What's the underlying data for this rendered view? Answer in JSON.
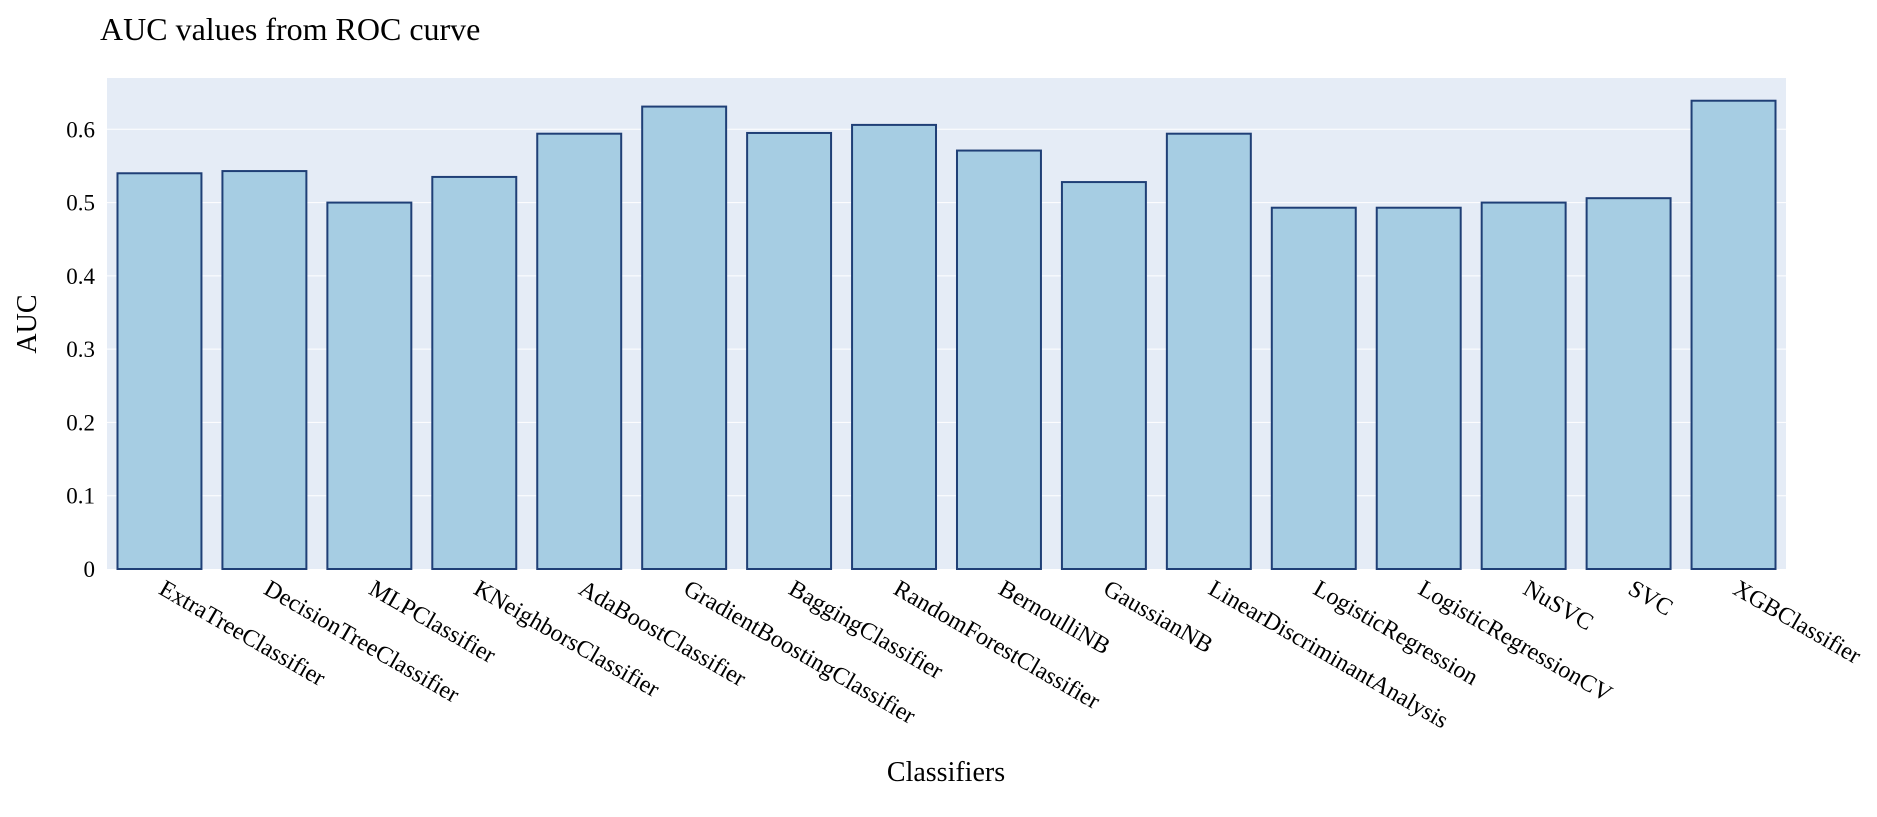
{
  "chart_data": {
    "type": "bar",
    "title": "AUC values from ROC curve",
    "xlabel": "Classifiers",
    "ylabel": "AUC",
    "categories": [
      "ExtraTreeClassifier",
      "DecisionTreeClassifier",
      "MLPClassifier",
      "KNeighborsClassifier",
      "AdaBoostClassifier",
      "GradientBoostingClassifier",
      "BaggingClassifier",
      "RandomForestClassifier",
      "BernoulliNB",
      "GaussianNB",
      "LinearDiscriminantAnalysis",
      "LogisticRegression",
      "LogisticRegressionCV",
      "NuSVC",
      "SVC",
      "XGBClassifier"
    ],
    "values": [
      0.54,
      0.543,
      0.5,
      0.535,
      0.594,
      0.631,
      0.595,
      0.606,
      0.571,
      0.528,
      0.594,
      0.493,
      0.493,
      0.5,
      0.506,
      0.639
    ],
    "ylim": [
      0,
      0.67
    ],
    "yticks": [
      0,
      0.1,
      0.2,
      0.3,
      0.4,
      0.5,
      0.6
    ],
    "ytick_labels": [
      "0",
      "0.1",
      "0.2",
      "0.3",
      "0.4",
      "0.5",
      "0.6"
    ],
    "grid": true,
    "legend": false,
    "colors": {
      "plot_background": "#e5ecf6",
      "bar_fill": "#a6cde3",
      "bar_outline": "#1f3f76",
      "gridline": "#ffffff"
    }
  }
}
